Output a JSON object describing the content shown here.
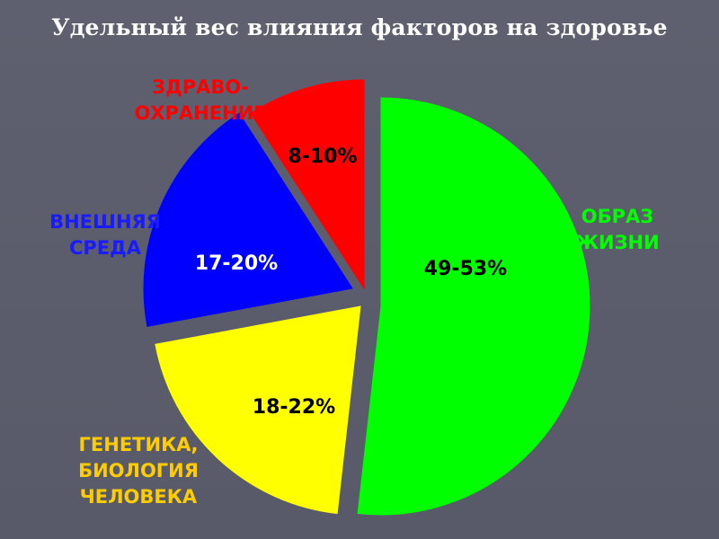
{
  "title": "Удельный вес влияния факторов на здоровье",
  "colors": {
    "background": "#5b5d6c",
    "lifestyle": "#00ff00",
    "genetics": "#ffff00",
    "environment": "#0000ff",
    "healthcare": "#ff0000",
    "label_lifestyle": "#00ff00",
    "label_genetics": "#ffcc00",
    "label_environment": "#1a1aff",
    "label_healthcare": "#ff0000"
  },
  "chart_data": {
    "type": "pie",
    "title": "Удельный вес влияния факторов на здоровье",
    "exploded": true,
    "slices": [
      {
        "label_lines": [
          "ОБРАЗ",
          "ЖИЗНИ"
        ],
        "value_label": "49-53%",
        "value": 51,
        "color": "#00ff00"
      },
      {
        "label_lines": [
          "ГЕНЕТИКА,",
          "БИОЛОГИЯ",
          "ЧЕЛОВЕКА"
        ],
        "value_label": "18-22%",
        "value": 20,
        "color": "#ffff00"
      },
      {
        "label_lines": [
          "ВНЕШНЯЯ",
          "СРЕДА"
        ],
        "value_label": "17-20%",
        "value": 18.5,
        "color": "#0000ff"
      },
      {
        "label_lines": [
          "ЗДРАВО-",
          "ОХРАНЕНИЕ"
        ],
        "value_label": "8-10%",
        "value": 9,
        "color": "#ff0000"
      }
    ]
  }
}
